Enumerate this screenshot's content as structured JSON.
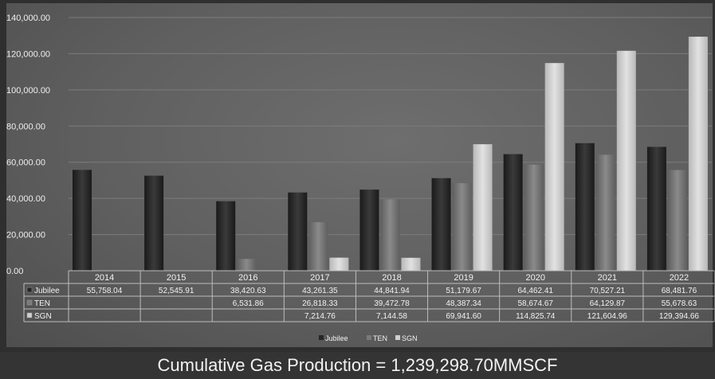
{
  "chart_data": {
    "type": "bar",
    "categories": [
      "2014",
      "2015",
      "2016",
      "2017",
      "2018",
      "2019",
      "2020",
      "2021",
      "2022"
    ],
    "series": [
      {
        "name": "Jubilee",
        "values": [
          55758.04,
          52545.91,
          38420.63,
          43261.35,
          44841.94,
          51179.67,
          64462.41,
          70527.21,
          68481.76
        ],
        "color": "#262626",
        "labels": [
          "55,758.04",
          "52,545.91",
          "38,420.63",
          "43,261.35",
          "44,841.94",
          "51,179.67",
          "64,462.41",
          "70,527.21",
          "68,481.76"
        ]
      },
      {
        "name": "TEN",
        "values": [
          null,
          null,
          6531.86,
          26818.33,
          39472.78,
          48387.34,
          58674.67,
          64129.87,
          55678.63
        ],
        "color": "#7a7a7a",
        "labels": [
          "",
          "",
          "6,531.86",
          "26,818.33",
          "39,472.78",
          "48,387.34",
          "58,674.67",
          "64,129.87",
          "55,678.63"
        ]
      },
      {
        "name": "SGN",
        "values": [
          null,
          null,
          null,
          7214.76,
          7144.58,
          69941.6,
          114825.74,
          121604.96,
          129394.66
        ],
        "color": "#cfcfcf",
        "labels": [
          "",
          "",
          "",
          "7,214.76",
          "7,144.58",
          "69,941.60",
          "114,825.74",
          "121,604.96",
          "129,394.66"
        ]
      }
    ],
    "y_ticks": [
      "0.00",
      "20,000.00",
      "40,000.00",
      "60,000.00",
      "80,000.00",
      "100,000.00",
      "120,000.00",
      "140,000.00"
    ],
    "ylim": [
      0,
      140000
    ],
    "grid": true,
    "legend_position": "bottom",
    "data_table": true
  },
  "footer_text": "Cumulative Gas Production = 1,239,298.70MMSCF",
  "colors": {
    "background": "#5f5f5f",
    "footer_bg": "#343434"
  }
}
